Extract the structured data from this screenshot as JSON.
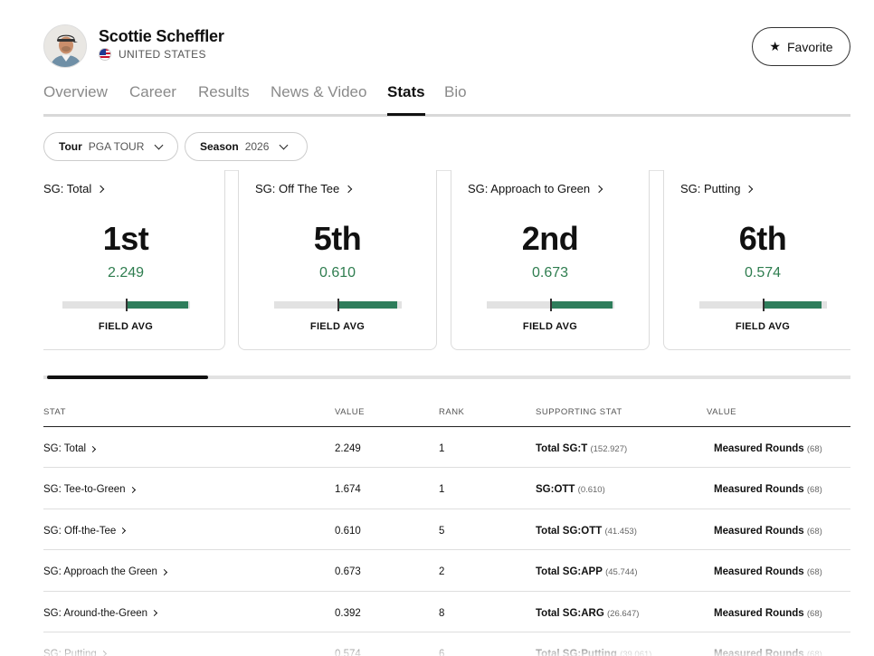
{
  "player": {
    "name": "Scottie Scheffler",
    "country": "UNITED STATES",
    "favorite_label": "Favorite",
    "icons": {
      "favorite": "star-icon",
      "flag": "us-flag-icon",
      "avatar": "player-headshot"
    }
  },
  "tabs": [
    {
      "label": "Overview",
      "active": false
    },
    {
      "label": "Career",
      "active": false
    },
    {
      "label": "Results",
      "active": false
    },
    {
      "label": "News & Video",
      "active": false
    },
    {
      "label": "Stats",
      "active": true
    },
    {
      "label": "Bio",
      "active": false
    }
  ],
  "filters": [
    {
      "label": "Tour",
      "value": "PGA TOUR"
    },
    {
      "label": "Season",
      "value": "2026"
    }
  ],
  "cards": [
    {
      "title": "SG: Total",
      "rank": "1st",
      "value": "2.249",
      "field_label": "FIELD AVG",
      "fill_fraction": 0.49
    },
    {
      "title": "SG: Off The Tee",
      "rank": "5th",
      "value": "0.610",
      "field_label": "FIELD AVG",
      "fill_fraction": 0.47
    },
    {
      "title": "SG: Approach to Green",
      "rank": "2nd",
      "value": "0.673",
      "field_label": "FIELD AVG",
      "fill_fraction": 0.49
    },
    {
      "title": "SG: Putting",
      "rank": "6th",
      "value": "0.574",
      "field_label": "FIELD AVG",
      "fill_fraction": 0.46
    }
  ],
  "table": {
    "headers": {
      "stat": "STAT",
      "value": "VALUE",
      "rank": "RANK",
      "supporting": "SUPPORTING STAT",
      "supporting_value": "VALUE"
    },
    "rows": [
      {
        "stat": "SG: Total",
        "value": "2.249",
        "rank": "1",
        "support_label": "Total SG:T",
        "support_val": "(152.927)",
        "value_label": "Measured Rounds",
        "value_val": "(68)"
      },
      {
        "stat": "SG: Tee-to-Green",
        "value": "1.674",
        "rank": "1",
        "support_label": "SG:OTT",
        "support_val": "(0.610)",
        "value_label": "Measured Rounds",
        "value_val": "(68)"
      },
      {
        "stat": "SG: Off-the-Tee",
        "value": "0.610",
        "rank": "5",
        "support_label": "Total SG:OTT",
        "support_val": "(41.453)",
        "value_label": "Measured Rounds",
        "value_val": "(68)"
      },
      {
        "stat": "SG: Approach the Green",
        "value": "0.673",
        "rank": "2",
        "support_label": "Total SG:APP",
        "support_val": "(45.744)",
        "value_label": "Measured Rounds",
        "value_val": "(68)"
      },
      {
        "stat": "SG: Around-the-Green",
        "value": "0.392",
        "rank": "8",
        "support_label": "Total SG:ARG",
        "support_val": "(26.647)",
        "value_label": "Measured Rounds",
        "value_val": "(68)"
      },
      {
        "stat": "SG: Putting",
        "value": "0.574",
        "rank": "6",
        "support_label": "Total SG:Putting",
        "support_val": "(39.061)",
        "value_label": "Measured Rounds",
        "value_val": "(68)"
      }
    ]
  },
  "colors": {
    "accent_green": "#2e7d4f",
    "bar_green": "#2e7d5b",
    "text": "#111111",
    "muted": "#8a8a8a"
  }
}
